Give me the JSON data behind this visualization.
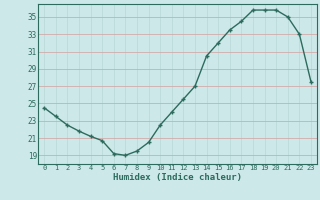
{
  "x": [
    0,
    1,
    2,
    3,
    4,
    5,
    6,
    7,
    8,
    9,
    10,
    11,
    12,
    13,
    14,
    15,
    16,
    17,
    18,
    19,
    20,
    21,
    22,
    23
  ],
  "y": [
    24.5,
    23.5,
    22.5,
    21.8,
    21.2,
    20.7,
    19.2,
    19.0,
    19.5,
    20.5,
    22.5,
    24.0,
    25.5,
    27.0,
    30.5,
    32.0,
    33.5,
    34.5,
    35.8,
    35.8,
    35.8,
    35.0,
    33.0,
    27.5
  ],
  "xlabel": "Humidex (Indice chaleur)",
  "xlim": [
    -0.5,
    23.5
  ],
  "ylim": [
    18.0,
    36.5
  ],
  "yticks": [
    19,
    21,
    23,
    25,
    27,
    29,
    31,
    33,
    35
  ],
  "xticks": [
    0,
    1,
    2,
    3,
    4,
    5,
    6,
    7,
    8,
    9,
    10,
    11,
    12,
    13,
    14,
    15,
    16,
    17,
    18,
    19,
    20,
    21,
    22,
    23
  ],
  "line_color": "#2d6b5e",
  "bg_color": "#cce8e8",
  "grid_color_h": "#d4a0a0",
  "grid_color_v": "#b8d8d8"
}
